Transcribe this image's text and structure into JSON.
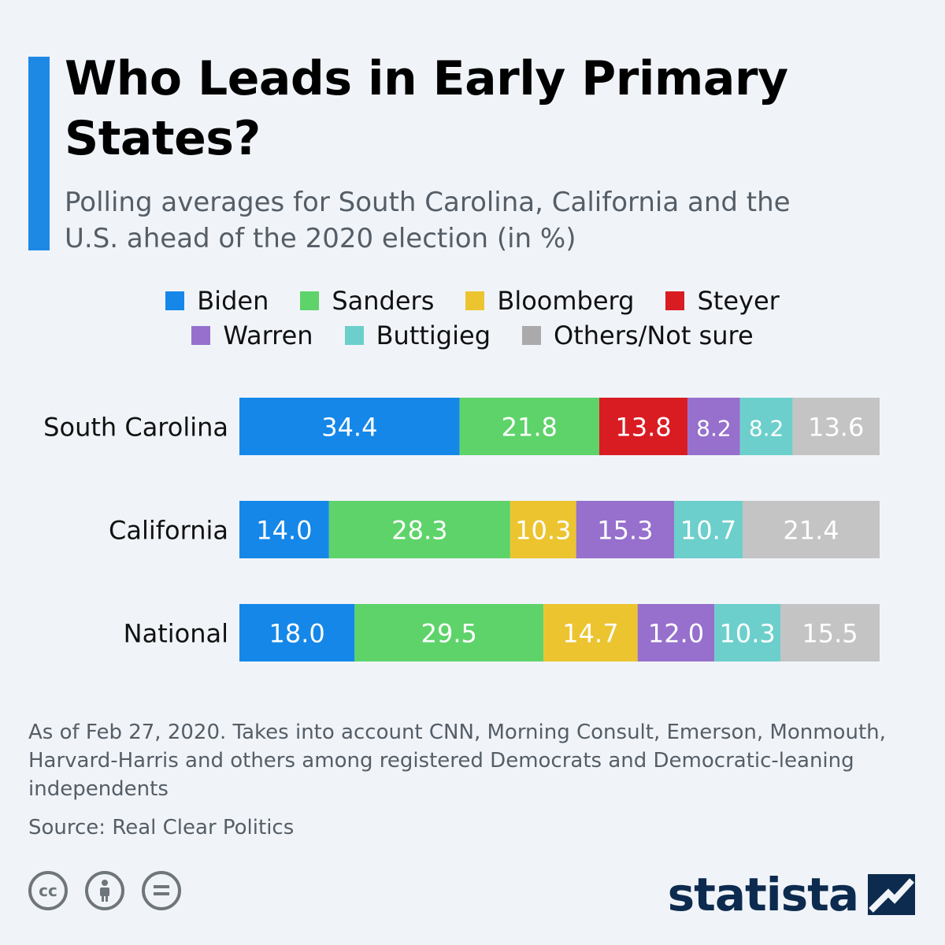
{
  "header": {
    "title": "Who Leads in Early Primary States?",
    "subtitle": "Polling averages for South Carolina, California and the U.S. ahead of the 2020 election (in %)"
  },
  "legend": {
    "rows": [
      [
        {
          "label": "Biden",
          "color": "#1587e8"
        },
        {
          "label": "Sanders",
          "color": "#5ed36a"
        },
        {
          "label": "Bloomberg",
          "color": "#ecc42f"
        },
        {
          "label": "Steyer",
          "color": "#d91c22"
        }
      ],
      [
        {
          "label": "Warren",
          "color": "#9670cc"
        },
        {
          "label": "Buttigieg",
          "color": "#6ccfcb"
        },
        {
          "label": "Others/Not sure",
          "color": "#aaaaaa"
        }
      ]
    ]
  },
  "chart_data": {
    "type": "bar",
    "orientation": "horizontal",
    "stacked": true,
    "categories": [
      "South Carolina",
      "California",
      "National"
    ],
    "series": [
      {
        "name": "Biden",
        "color": "#1587e8",
        "values": [
          34.4,
          14.0,
          18.0
        ],
        "labels": [
          "34.4",
          "14.0",
          "18.0"
        ]
      },
      {
        "name": "Sanders",
        "color": "#5ed36a",
        "values": [
          21.8,
          28.3,
          29.5
        ],
        "labels": [
          "21.8",
          "28.3",
          "29.5"
        ]
      },
      {
        "name": "Bloomberg",
        "color": "#ecc42f",
        "values": [
          0,
          10.3,
          14.7
        ],
        "labels": [
          "",
          "10.3",
          "14.7"
        ]
      },
      {
        "name": "Steyer",
        "color": "#d91c22",
        "values": [
          13.8,
          0,
          0
        ],
        "labels": [
          "13.8",
          "",
          ""
        ]
      },
      {
        "name": "Warren",
        "color": "#9670cc",
        "values": [
          8.2,
          15.3,
          12.0
        ],
        "labels": [
          "8.2",
          "15.3",
          "12.0"
        ]
      },
      {
        "name": "Buttigieg",
        "color": "#6ccfcb",
        "values": [
          8.2,
          10.7,
          10.3
        ],
        "labels": [
          "8.2",
          "10.7",
          "10.3"
        ]
      },
      {
        "name": "Others/Not sure",
        "color": "#c4c4c4",
        "values": [
          13.6,
          21.4,
          15.5
        ],
        "labels": [
          "13.6",
          "21.4",
          "15.5"
        ]
      }
    ],
    "xlim": [
      0,
      100
    ],
    "grid": false,
    "legend": "top-center"
  },
  "footer": {
    "notes": "As of Feb 27, 2020. Takes into account CNN, Morning Consult, Emerson, Monmouth, Harvard-Harris and others among registered Democrats and Democratic-leaning independents",
    "source": "Source: Real Clear Politics",
    "license_icons": [
      "cc-icon",
      "attribution-icon",
      "no-derivatives-icon"
    ],
    "logo": "statista"
  }
}
